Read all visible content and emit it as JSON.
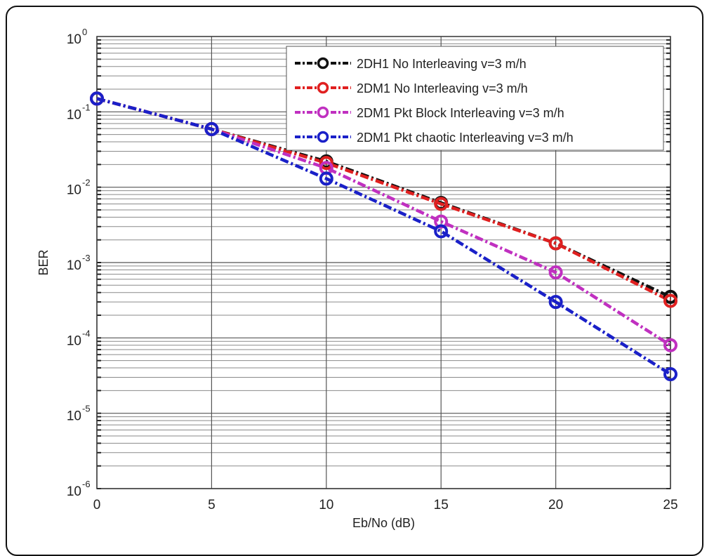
{
  "chart_data": {
    "type": "line",
    "title": "",
    "xlabel": "Eb/No (dB)",
    "ylabel": "BER",
    "xlim": [
      0,
      25
    ],
    "ylim": [
      1e-06,
      1
    ],
    "yscale": "log",
    "grid": true,
    "legend_position": "top-right",
    "x": [
      0,
      5,
      10,
      15,
      20,
      25
    ],
    "x_ticks": [
      "0",
      "5",
      "10",
      "15",
      "20",
      "25"
    ],
    "y_ticks": [
      {
        "base": "10",
        "exp": "0",
        "value": 1
      },
      {
        "base": "10",
        "exp": "-1",
        "value": 0.1
      },
      {
        "base": "10",
        "exp": "-2",
        "value": 0.01
      },
      {
        "base": "10",
        "exp": "-3",
        "value": 0.001
      },
      {
        "base": "10",
        "exp": "-4",
        "value": 0.0001
      },
      {
        "base": "10",
        "exp": "-5",
        "value": 1e-05
      },
      {
        "base": "10",
        "exp": "-6",
        "value": 1e-06
      }
    ],
    "series": [
      {
        "name": "2DH1 No Interleaving v=3 m/h",
        "color": "#111111",
        "values": [
          0.15,
          0.059,
          0.022,
          0.0062,
          0.0018,
          0.00035
        ]
      },
      {
        "name": "2DM1 No Interleaving v=3 m/h",
        "color": "#e02020",
        "values": [
          0.15,
          0.059,
          0.021,
          0.006,
          0.0018,
          0.00031
        ]
      },
      {
        "name": "2DM1 Pkt Block Interleaving v=3 m/h",
        "color": "#c030c0",
        "values": [
          0.15,
          0.059,
          0.018,
          0.0035,
          0.00074,
          8e-05
        ]
      },
      {
        "name": "2DM1 Pkt chaotic Interleaving v=3 m/h",
        "color": "#1a20c8",
        "values": [
          0.15,
          0.059,
          0.013,
          0.0026,
          0.0003,
          3.3e-05
        ]
      }
    ]
  }
}
